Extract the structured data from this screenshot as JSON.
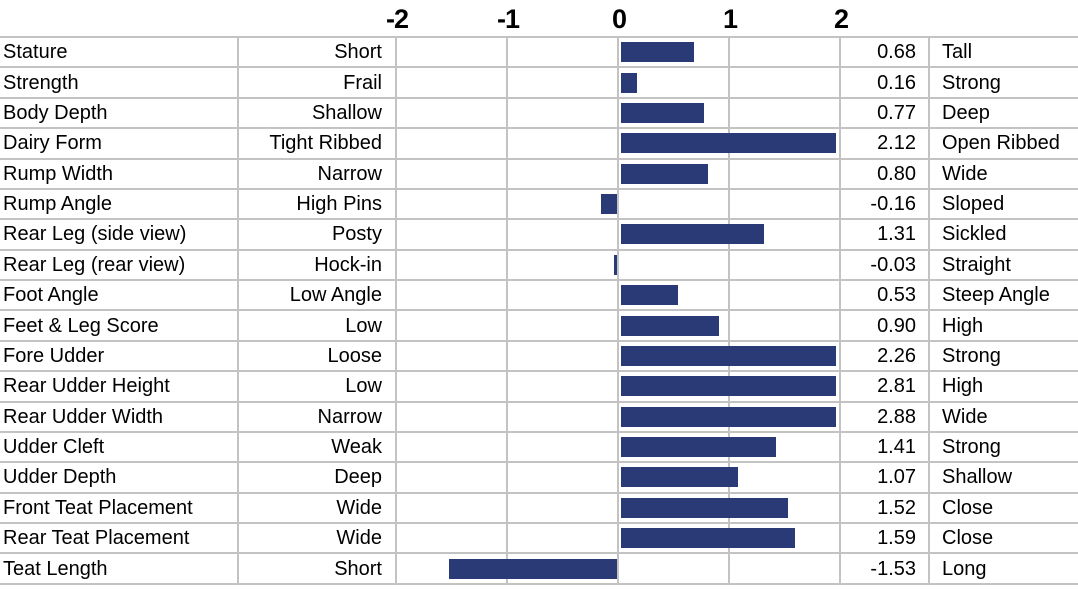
{
  "chart_data": {
    "type": "bar",
    "title": "",
    "orientation": "horizontal",
    "axis": {
      "min": -2,
      "max": 2,
      "ticks": [
        "-2",
        "-1",
        "0",
        "1",
        "2"
      ],
      "grid": true,
      "tick_position": "top"
    },
    "columns": [
      "trait",
      "low_end_label",
      "bar",
      "value",
      "high_end_label"
    ],
    "rows": [
      {
        "trait": "Stature",
        "low": "Short",
        "value": 0.68,
        "display": "0.68",
        "high": "Tall"
      },
      {
        "trait": "Strength",
        "low": "Frail",
        "value": 0.16,
        "display": "0.16",
        "high": "Strong"
      },
      {
        "trait": "Body Depth",
        "low": "Shallow",
        "value": 0.77,
        "display": "0.77",
        "high": "Deep"
      },
      {
        "trait": "Dairy Form",
        "low": "Tight Ribbed",
        "value": 2.12,
        "display": "2.12",
        "high": "Open Ribbed"
      },
      {
        "trait": "Rump Width",
        "low": "Narrow",
        "value": 0.8,
        "display": "0.80",
        "high": "Wide"
      },
      {
        "trait": "Rump Angle",
        "low": "High Pins",
        "value": -0.16,
        "display": "-0.16",
        "high": "Sloped"
      },
      {
        "trait": "Rear Leg (side view)",
        "low": "Posty",
        "value": 1.31,
        "display": "1.31",
        "high": "Sickled"
      },
      {
        "trait": "Rear Leg (rear view)",
        "low": "Hock-in",
        "value": -0.03,
        "display": "-0.03",
        "high": "Straight"
      },
      {
        "trait": "Foot Angle",
        "low": "Low Angle",
        "value": 0.53,
        "display": "0.53",
        "high": "Steep Angle"
      },
      {
        "trait": "Feet & Leg Score",
        "low": "Low",
        "value": 0.9,
        "display": "0.90",
        "high": "High"
      },
      {
        "trait": "Fore Udder",
        "low": "Loose",
        "value": 2.26,
        "display": "2.26",
        "high": "Strong"
      },
      {
        "trait": "Rear Udder Height",
        "low": "Low",
        "value": 2.81,
        "display": "2.81",
        "high": "High"
      },
      {
        "trait": "Rear Udder Width",
        "low": "Narrow",
        "value": 2.88,
        "display": "2.88",
        "high": "Wide"
      },
      {
        "trait": "Udder Cleft",
        "low": "Weak",
        "value": 1.41,
        "display": "1.41",
        "high": "Strong"
      },
      {
        "trait": "Udder Depth",
        "low": "Deep",
        "value": 1.07,
        "display": "1.07",
        "high": "Shallow"
      },
      {
        "trait": "Front Teat Placement",
        "low": "Wide",
        "value": 1.52,
        "display": "1.52",
        "high": "Close"
      },
      {
        "trait": "Rear Teat Placement",
        "low": "Wide",
        "value": 1.59,
        "display": "1.59",
        "high": "Close"
      },
      {
        "trait": "Teat Length",
        "low": "Short",
        "value": -1.53,
        "display": "-1.53",
        "high": "Long"
      }
    ],
    "colors": {
      "bar": "#2a3a76",
      "gridline": "#c3c3c3",
      "text": "#000000",
      "background": "#ffffff"
    }
  }
}
